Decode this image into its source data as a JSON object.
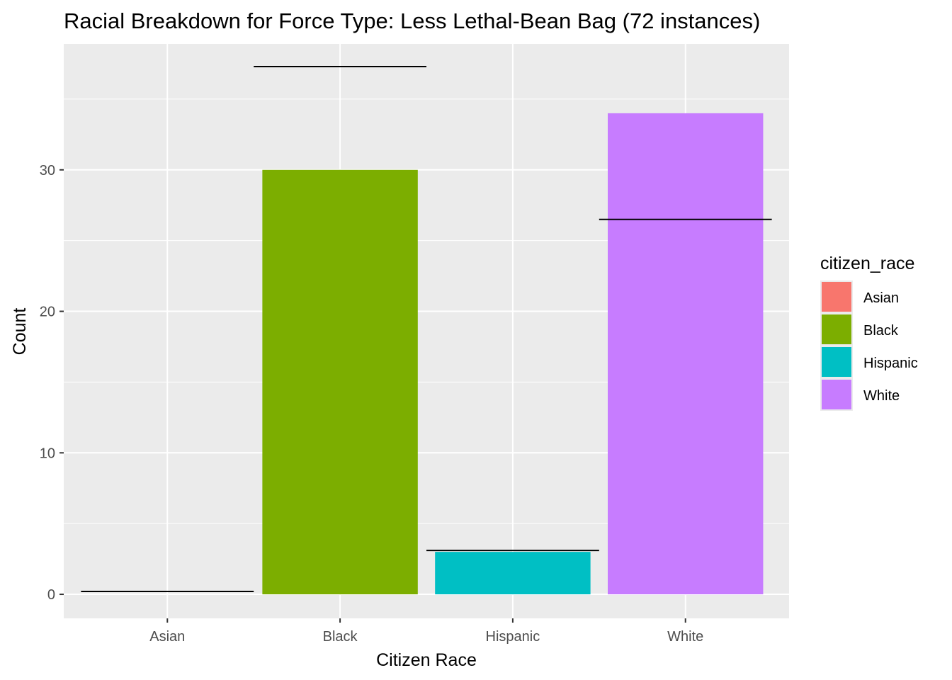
{
  "chart_data": {
    "type": "bar",
    "title": "Racial Breakdown for Force Type: Less Lethal-Bean Bag (72 instances)",
    "xlabel": "Citizen Race",
    "ylabel": "Count",
    "categories": [
      "Asian",
      "Black",
      "Hispanic",
      "White"
    ],
    "values": [
      0,
      30,
      3,
      34
    ],
    "reference_lines": [
      0.2,
      37.3,
      3.1,
      26.5
    ],
    "colors": [
      "#F8766D",
      "#7CAE00",
      "#00BFC4",
      "#C77CFF"
    ],
    "ylim": [
      -1.7,
      38.9
    ],
    "yticks": [
      0,
      10,
      20,
      30
    ],
    "grid": true,
    "legend": {
      "title": "citizen_race",
      "position": "right",
      "items": [
        "Asian",
        "Black",
        "Hispanic",
        "White"
      ]
    }
  }
}
